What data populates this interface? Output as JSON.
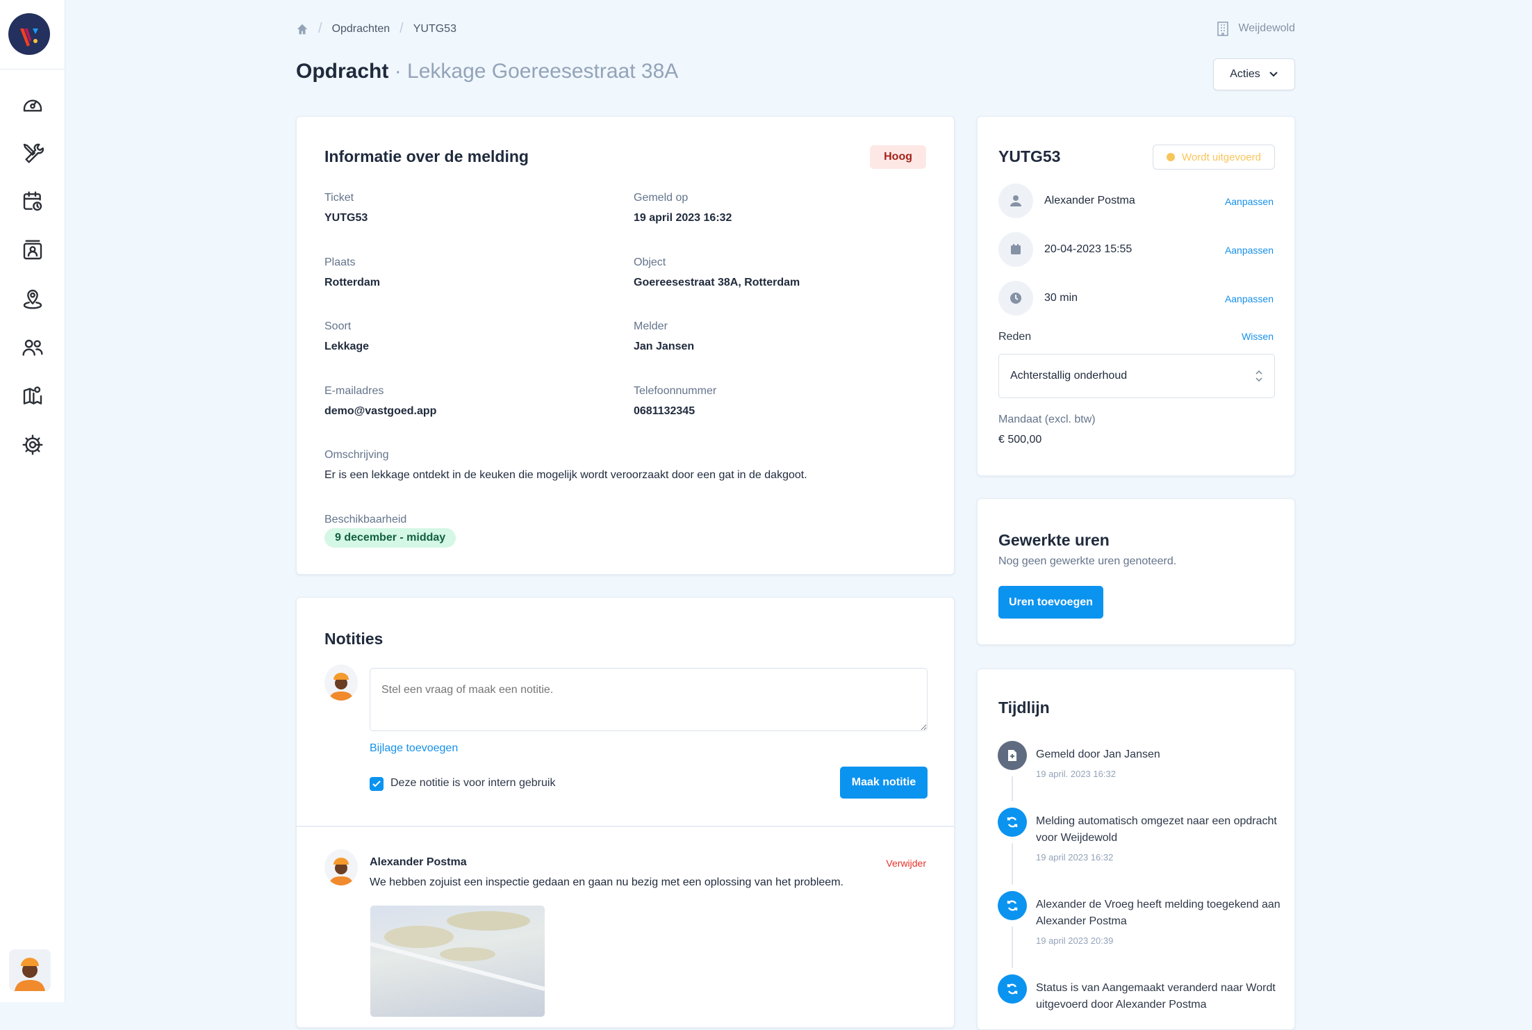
{
  "breadcrumb": {
    "items": [
      "Opdrachten",
      "YUTG53"
    ]
  },
  "organization": "Weijdewold",
  "page": {
    "title": "Opdracht",
    "subtitle": "Lekkage Goereesestraat 38A"
  },
  "actions_label": "Acties",
  "sidebar": {
    "items": [
      "dashboard-icon",
      "tools-icon",
      "calendar-clock-icon",
      "contacts-icon",
      "location-icon",
      "users-icon",
      "map-icon",
      "settings-icon"
    ]
  },
  "info": {
    "title": "Informatie over de melding",
    "priority": "Hoog",
    "priority_colors": {
      "bg": "#fde8e6",
      "text": "#a3231a"
    },
    "fields": [
      {
        "label": "Ticket",
        "value": "YUTG53"
      },
      {
        "label": "Gemeld op",
        "value": "19 april 2023 16:32"
      },
      {
        "label": "Plaats",
        "value": "Rotterdam"
      },
      {
        "label": "Object",
        "value": "Goereesestraat 38A, Rotterdam"
      },
      {
        "label": "Soort",
        "value": "Lekkage"
      },
      {
        "label": "Melder",
        "value": "Jan Jansen"
      },
      {
        "label": "E-mailadres",
        "value": "demo@vastgoed.app"
      },
      {
        "label": "Telefoonnummer",
        "value": "0681132345"
      }
    ],
    "description_label": "Omschrijving",
    "description": "Er is een lekkage ontdekt in de keuken die mogelijk wordt veroorzaakt door een gat in de dakgoot.",
    "availability_label": "Beschikbaarheid",
    "availability": "9 december - midday"
  },
  "notes": {
    "title": "Notities",
    "placeholder": "Stel een vraag of maak een notitie.",
    "attach_label": "Bijlage toevoegen",
    "internal_label": "Deze notitie is voor intern gebruik",
    "internal_checked": true,
    "submit_label": "Maak notitie",
    "items": [
      {
        "author": "Alexander Postma",
        "text": "We hebben zojuist een inspectie gedaan en gaan nu bezig met een oplossing van het probleem.",
        "delete_label": "Verwijder"
      }
    ]
  },
  "summary": {
    "id": "YUTG53",
    "status": "Wordt uitgevoerd",
    "status_color": "#f8c55b",
    "rows": [
      {
        "icon": "user-icon",
        "value": "Alexander Postma",
        "action": "Aanpassen"
      },
      {
        "icon": "calendar-icon",
        "value": "20-04-2023 15:55",
        "action": "Aanpassen"
      },
      {
        "icon": "clock-icon",
        "value": "30 min",
        "action": "Aanpassen"
      }
    ],
    "reason_label": "Reden",
    "reason_clear": "Wissen",
    "reason_value": "Achterstallig onderhoud",
    "mandate_label": "Mandaat (excl. btw)",
    "mandate_value": "€ 500,00"
  },
  "hours": {
    "title": "Gewerkte uren",
    "empty": "Nog geen gewerkte uren genoteerd.",
    "add_label": "Uren toevoegen"
  },
  "timeline": {
    "title": "Tijdlijn",
    "items": [
      {
        "icon": "file-plus-icon",
        "text": "Gemeld door Jan Jansen",
        "date": "19 april. 2023 16:32"
      },
      {
        "icon": "sync-icon",
        "text": "Melding automatisch omgezet naar een opdracht voor Weijdewold",
        "date": "19 april 2023 16:32"
      },
      {
        "icon": "sync-icon",
        "text": "Alexander de Vroeg heeft melding toegekend aan Alexander Postma",
        "date": "19 april 2023 20:39"
      },
      {
        "icon": "sync-icon",
        "text": "Status is van Aangemaakt veranderd naar Wordt uitgevoerd door Alexander Postma",
        "date": ""
      }
    ]
  },
  "accent": "#0b93f0"
}
